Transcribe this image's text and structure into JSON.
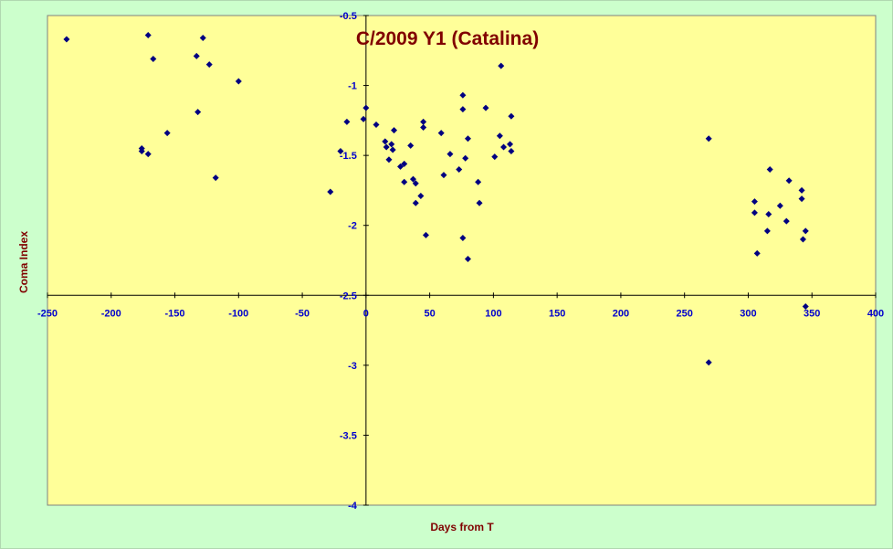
{
  "chart_data": {
    "type": "scatter",
    "title": "C/2009 Y1 (Catalina)",
    "xlabel": "Days from T",
    "ylabel": "Coma Index",
    "xlim": [
      -250,
      400
    ],
    "ylim": [
      -4,
      -0.5
    ],
    "x_ticks": [
      -250,
      -200,
      -150,
      -100,
      -50,
      0,
      50,
      100,
      150,
      200,
      250,
      300,
      350,
      400
    ],
    "y_ticks": [
      -0.5,
      -1,
      -1.5,
      -2,
      -2.5,
      -3,
      -3.5,
      -4
    ],
    "grid": false,
    "legend": "none",
    "colors": {
      "plot_bg": "#ffff99",
      "page_bg": "#ccffcc",
      "marker": "#000080",
      "title": "#800000",
      "ticks": "#0000cc"
    },
    "series": [
      {
        "points": [
          {
            "x": -235,
            "y": -0.67
          },
          {
            "x": -171,
            "y": -0.64
          },
          {
            "x": -167,
            "y": -0.81
          },
          {
            "x": -128,
            "y": -0.66
          },
          {
            "x": -133,
            "y": -0.79
          },
          {
            "x": -123,
            "y": -0.85
          },
          {
            "x": -100,
            "y": -0.97
          },
          {
            "x": -132,
            "y": -1.19
          },
          {
            "x": -156,
            "y": -1.34
          },
          {
            "x": -176,
            "y": -1.45
          },
          {
            "x": -176,
            "y": -1.47
          },
          {
            "x": -171,
            "y": -1.49
          },
          {
            "x": -118,
            "y": -1.66
          },
          {
            "x": -28,
            "y": -1.76
          },
          {
            "x": -20,
            "y": -1.47
          },
          {
            "x": -15,
            "y": -1.26
          },
          {
            "x": -2,
            "y": -1.24
          },
          {
            "x": 0,
            "y": -1.16
          },
          {
            "x": 8,
            "y": -1.28
          },
          {
            "x": 15,
            "y": -1.4
          },
          {
            "x": 16,
            "y": -1.44
          },
          {
            "x": 18,
            "y": -1.53
          },
          {
            "x": 20,
            "y": -1.42
          },
          {
            "x": 21,
            "y": -1.46
          },
          {
            "x": 22,
            "y": -1.32
          },
          {
            "x": 27,
            "y": -1.58
          },
          {
            "x": 30,
            "y": -1.56
          },
          {
            "x": 30,
            "y": -1.69
          },
          {
            "x": 35,
            "y": -1.43
          },
          {
            "x": 37,
            "y": -1.67
          },
          {
            "x": 39,
            "y": -1.7
          },
          {
            "x": 39,
            "y": -1.84
          },
          {
            "x": 43,
            "y": -1.79
          },
          {
            "x": 45,
            "y": -1.26
          },
          {
            "x": 45,
            "y": -1.3
          },
          {
            "x": 47,
            "y": -2.07
          },
          {
            "x": 59,
            "y": -1.34
          },
          {
            "x": 61,
            "y": -1.64
          },
          {
            "x": 66,
            "y": -1.49
          },
          {
            "x": 73,
            "y": -1.6
          },
          {
            "x": 76,
            "y": -1.07
          },
          {
            "x": 76,
            "y": -1.17
          },
          {
            "x": 76,
            "y": -2.09
          },
          {
            "x": 78,
            "y": -1.52
          },
          {
            "x": 80,
            "y": -1.38
          },
          {
            "x": 80,
            "y": -2.24
          },
          {
            "x": 88,
            "y": -1.69
          },
          {
            "x": 89,
            "y": -1.84
          },
          {
            "x": 94,
            "y": -1.16
          },
          {
            "x": 101,
            "y": -1.51
          },
          {
            "x": 105,
            "y": -1.36
          },
          {
            "x": 106,
            "y": -0.86
          },
          {
            "x": 108,
            "y": -1.44
          },
          {
            "x": 114,
            "y": -1.22
          },
          {
            "x": 113,
            "y": -1.42
          },
          {
            "x": 114,
            "y": -1.47
          },
          {
            "x": 269,
            "y": -1.38
          },
          {
            "x": 269,
            "y": -2.98
          },
          {
            "x": 305,
            "y": -1.83
          },
          {
            "x": 305,
            "y": -1.91
          },
          {
            "x": 307,
            "y": -2.2
          },
          {
            "x": 315,
            "y": -2.04
          },
          {
            "x": 316,
            "y": -1.92
          },
          {
            "x": 317,
            "y": -1.6
          },
          {
            "x": 325,
            "y": -1.86
          },
          {
            "x": 330,
            "y": -1.97
          },
          {
            "x": 332,
            "y": -1.68
          },
          {
            "x": 342,
            "y": -1.75
          },
          {
            "x": 342,
            "y": -1.81
          },
          {
            "x": 343,
            "y": -2.1
          },
          {
            "x": 345,
            "y": -2.04
          },
          {
            "x": 345,
            "y": -2.58
          }
        ]
      }
    ]
  }
}
